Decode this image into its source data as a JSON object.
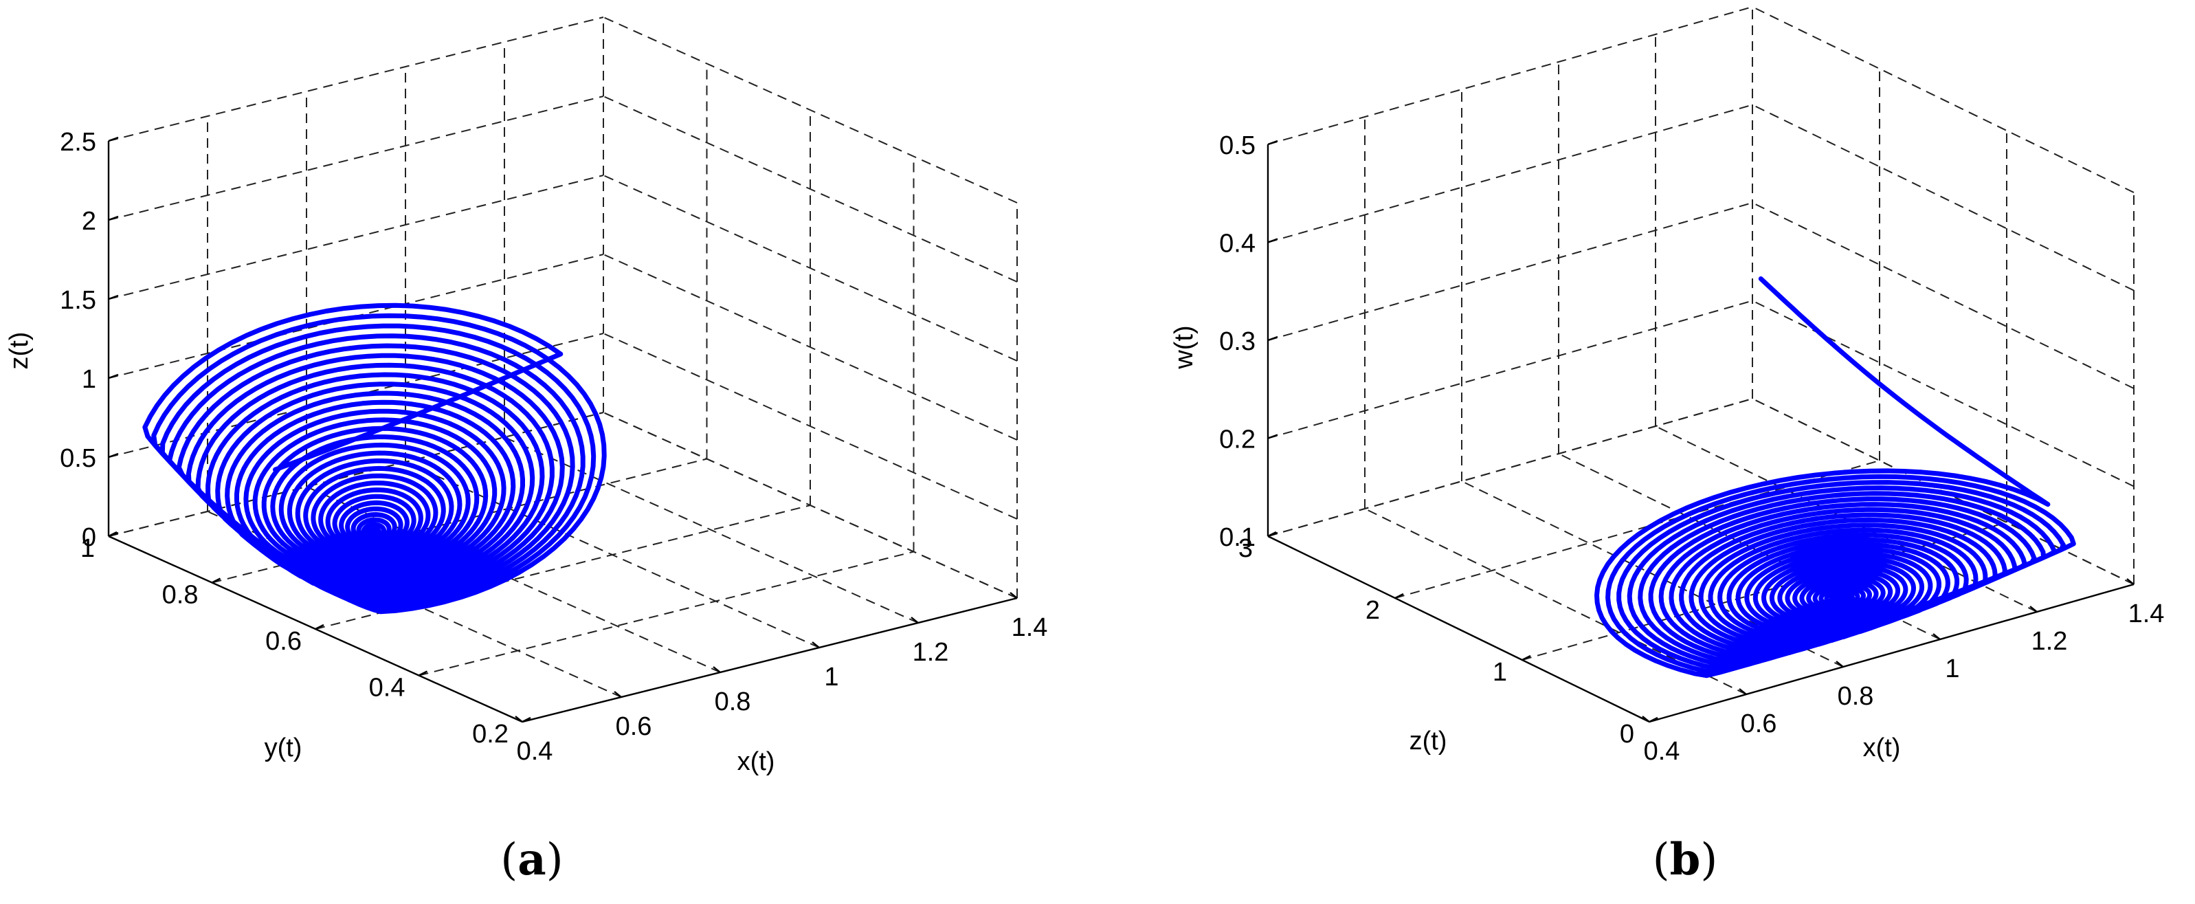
{
  "chart_data": [
    {
      "panel": "(a)",
      "type": "line",
      "projection": "3d",
      "grid": true,
      "xlabel": "x(t)",
      "ylabel": "y(t)",
      "zlabel": "z(t)",
      "xlim": [
        0.4,
        1.4
      ],
      "ylim": [
        0.2,
        1
      ],
      "zlim": [
        0,
        2.5
      ],
      "xticks": [
        "0.4",
        "0.6",
        "0.8",
        "1",
        "1.2",
        "1.4"
      ],
      "yticks": [
        "0.2",
        "0.4",
        "0.6",
        "0.8",
        "1"
      ],
      "zticks": [
        "0",
        "0.5",
        "1",
        "1.5",
        "2",
        "2.5"
      ],
      "series": [
        {
          "color": "#0000ff",
          "shape": "spiral converging to equilibrium",
          "equilibrium": {
            "x": 0.62,
            "y": 0.7,
            "z": 0.28
          },
          "start": {
            "x": 0.58,
            "y": 0.85,
            "z": 0.5
          },
          "max_extent": {
            "x": [
              0.36,
              1.16
            ],
            "y": [
              0.35,
              1.0
            ],
            "z": [
              0.0,
              2.1
            ]
          }
        }
      ]
    },
    {
      "panel": "(b)",
      "type": "line",
      "projection": "3d",
      "grid": true,
      "xlabel": "x(t)",
      "ylabel": "z(t)",
      "zlabel": "w(t)",
      "xlim": [
        0.4,
        1.4
      ],
      "ylim": [
        0,
        3
      ],
      "zlim": [
        0.1,
        0.5
      ],
      "xticks": [
        "0.4",
        "0.6",
        "0.8",
        "1",
        "1.2",
        "1.4"
      ],
      "yticks": [
        "0",
        "1",
        "2",
        "3"
      ],
      "zticks": [
        "0.1",
        "0.2",
        "0.3",
        "0.4",
        "0.5"
      ],
      "series": [
        {
          "color": "#0000ff",
          "shape": "spiral converging to equilibrium",
          "equilibrium": {
            "x": 0.9,
            "y": 0.4,
            "z": 0.13
          },
          "start": {
            "x": 1.05,
            "y": 1.6,
            "z": 0.36
          },
          "max_extent": {
            "x": [
              0.4,
              1.3
            ],
            "y": [
              0.0,
              2.4
            ],
            "z": [
              0.1,
              0.36
            ]
          }
        }
      ]
    }
  ],
  "panel_labels": [
    "(a)",
    "(b)"
  ]
}
